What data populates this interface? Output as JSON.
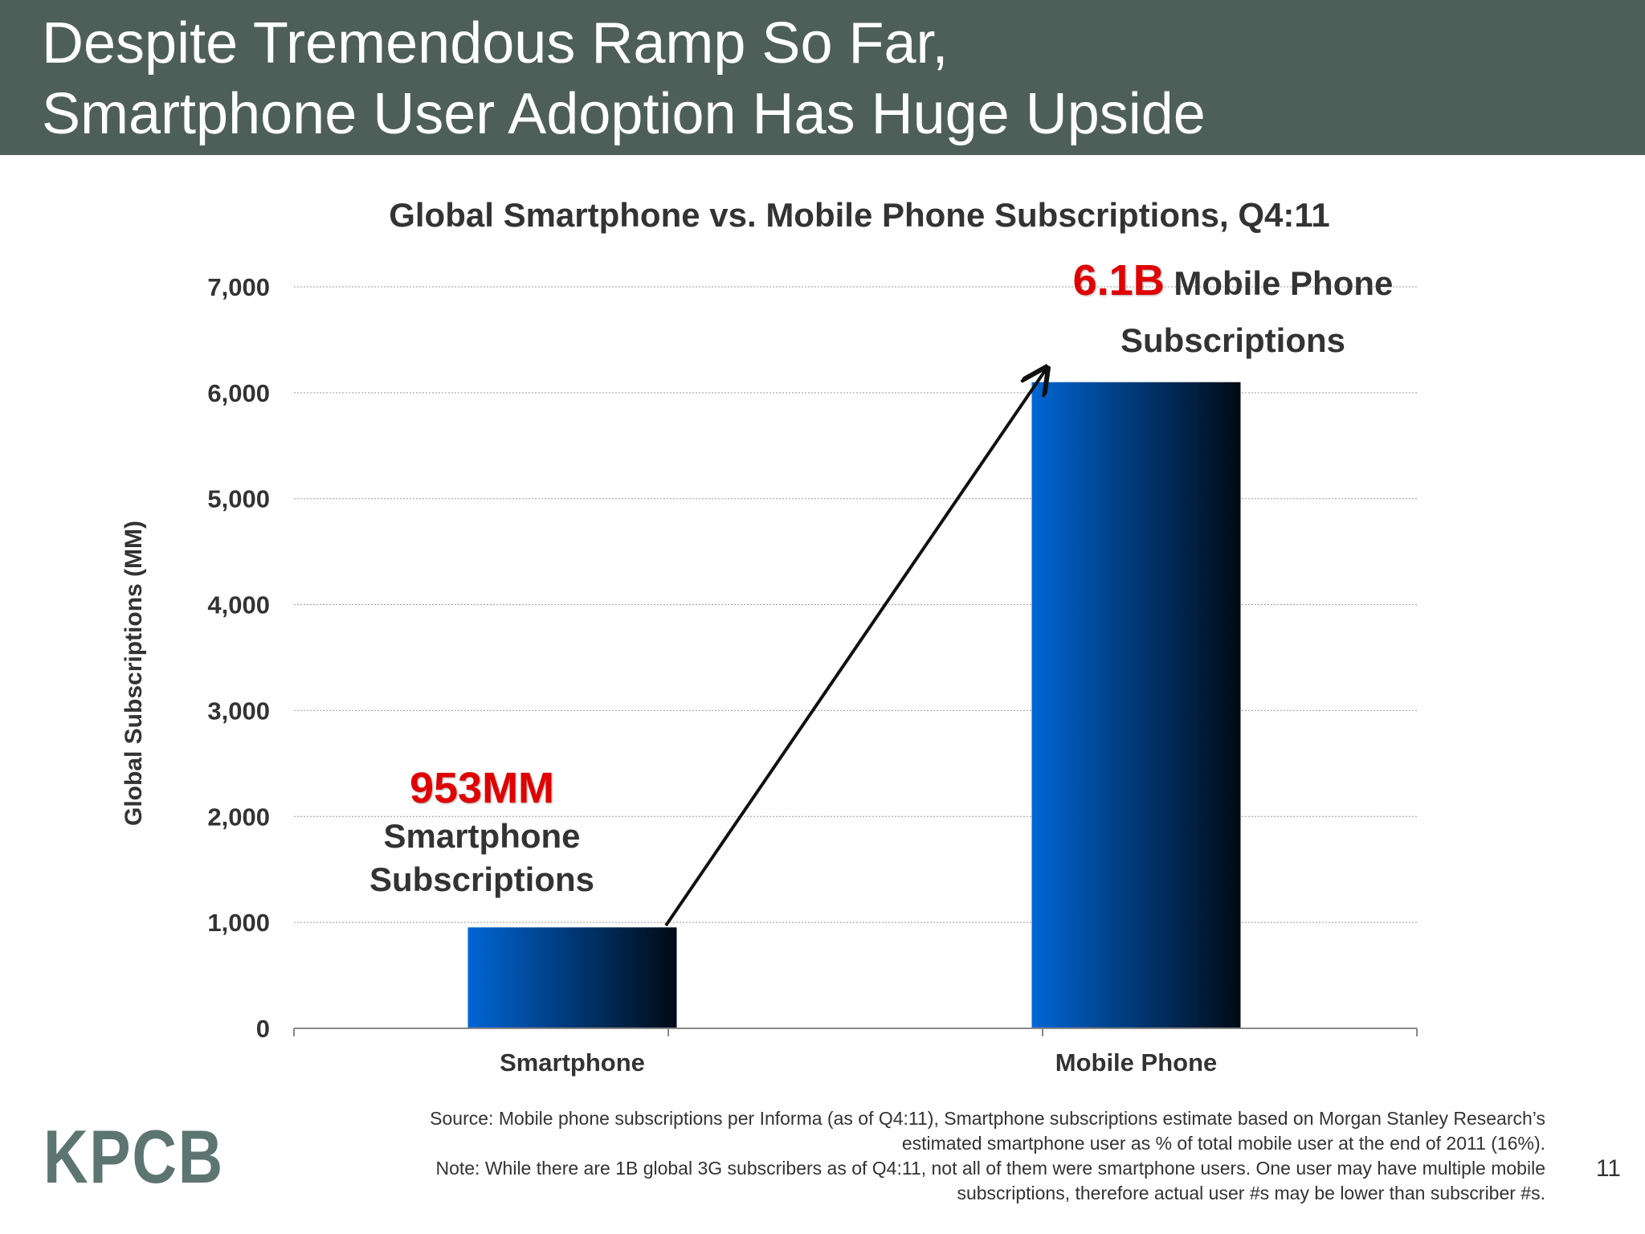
{
  "header": {
    "title_line1": "Despite Tremendous Ramp So Far,",
    "title_line2": "Smartphone User Adoption Has Huge Upside"
  },
  "chart_data": {
    "type": "bar",
    "title": "Global Smartphone vs. Mobile Phone Subscriptions, Q4:11",
    "ylabel": "Global Subscriptions (MM)",
    "xlabel": "",
    "categories": [
      "Smartphone",
      "Mobile Phone"
    ],
    "values": [
      953,
      6100
    ],
    "ylim": [
      0,
      7000
    ],
    "yticks": [
      0,
      1000,
      2000,
      3000,
      4000,
      5000,
      6000,
      7000
    ],
    "ytick_labels": [
      "0",
      "1,000",
      "2,000",
      "3,000",
      "4,000",
      "5,000",
      "6,000",
      "7,000"
    ],
    "grid": true,
    "bar_color_start": "#0066d6",
    "bar_color_end": "#000a14",
    "annotations": [
      {
        "big": "953MM",
        "line1": "Smartphone",
        "line2": "Subscriptions"
      },
      {
        "big": "6.1B",
        "line1": " Mobile Phone",
        "line2": "Subscriptions"
      }
    ]
  },
  "footer": {
    "source_line1": "Source: Mobile phone subscriptions per Informa (as of Q4:11), Smartphone subscriptions estimate based on Morgan Stanley Research’s",
    "source_line2": "estimated smartphone user as % of total mobile user at the end of 2011 (16%).",
    "note_line1": "Note: While there are 1B global 3G subscribers as of Q4:11, not all of them were smartphone users. One user may have multiple mobile",
    "note_line2": "subscriptions, therefore actual user #s may be lower than subscriber #s."
  },
  "logo": "KPCB",
  "page_number": "11",
  "colors": {
    "header_bg": "#4e5f59",
    "highlight_red": "#e00000",
    "logo": "#5d7570"
  }
}
